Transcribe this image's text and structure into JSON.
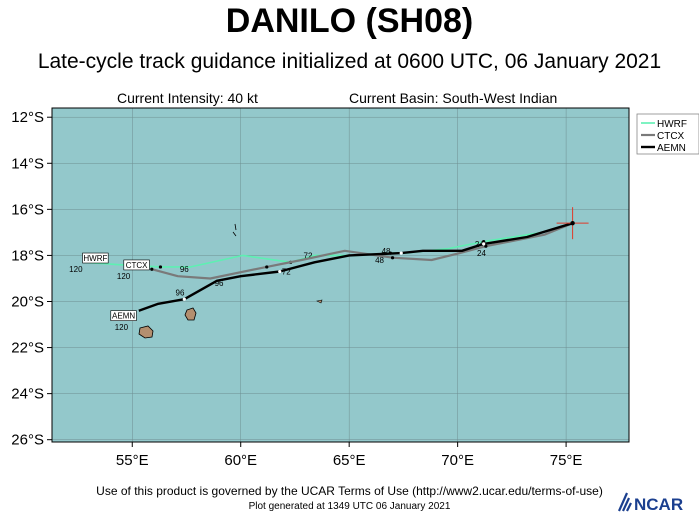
{
  "title": "DANILO (SH08)",
  "subtitle": "Late-cycle track guidance initialized at 0600 UTC, 06 January 2021",
  "current_intensity": "Current Intensity: 40 kt",
  "current_basin": "Current Basin: South-West Indian",
  "footer_terms": "Use of this product is governed by the UCAR Terms of Use (http://www2.ucar.edu/terms-of-use)",
  "footer_generated": "Plot generated at 1349 UTC   06 January 2021",
  "logo_text": "NCAR",
  "colors": {
    "ocean": "#93c8cb",
    "land": "#b48f6f",
    "HWRF": "#5ef0b2",
    "CTCX": "#7a7a7a",
    "AEMN": "#000000",
    "current_position": "#e03a2a"
  },
  "chart_data": {
    "type": "line",
    "xlabel": "",
    "ylabel": "",
    "xlim": [
      51.3,
      77.9
    ],
    "ylim": [
      -26.1,
      -11.6
    ],
    "x_ticks": [
      "55°E",
      "60°E",
      "65°E",
      "70°E",
      "75°E"
    ],
    "y_ticks": [
      "12°S",
      "14°S",
      "16°S",
      "18°S",
      "20°S",
      "22°S",
      "24°S",
      "26°S"
    ],
    "legend": [
      "HWRF",
      "CTCX",
      "AEMN"
    ],
    "legend_position": "right",
    "current_position": {
      "lon": 75.3,
      "lat": -16.6
    },
    "series": [
      {
        "name": "HWRF",
        "lon": [
          75.3,
          73.9,
          71.2,
          69.6,
          67.6,
          66.9,
          65.3,
          63.4,
          62.3,
          60.1,
          57.7,
          56.3,
          54.3,
          52.8
        ],
        "lat": [
          -16.6,
          -17.0,
          -17.4,
          -17.7,
          -17.9,
          -17.9,
          -18.0,
          -18.0,
          -18.3,
          -18.0,
          -18.5,
          -18.5,
          -18.4,
          -18.3
        ],
        "tau_labels": [
          {
            "text": "24",
            "lon": 71.0,
            "lat": -17.5
          },
          {
            "text": "48",
            "lon": 66.7,
            "lat": -17.8
          },
          {
            "text": "72",
            "lon": 63.1,
            "lat": -18.0
          },
          {
            "text": "96",
            "lon": 57.4,
            "lat": -18.6
          },
          {
            "text": "120",
            "lon": 52.4,
            "lat": -18.6
          }
        ],
        "end_label": {
          "text": "HWRF",
          "lon": 53.3,
          "lat": -18.2
        }
      },
      {
        "name": "CTCX",
        "lon": [
          75.3,
          74.0,
          71.3,
          70.1,
          68.8,
          67.0,
          64.8,
          62.8,
          61.2,
          58.6,
          57.1,
          55.9
        ],
        "lat": [
          -16.6,
          -17.1,
          -17.6,
          -17.9,
          -18.2,
          -18.1,
          -17.8,
          -18.2,
          -18.5,
          -19.0,
          -18.9,
          -18.6
        ],
        "tau_labels": [
          {
            "text": "24",
            "lon": 71.1,
            "lat": -17.9
          },
          {
            "text": "48",
            "lon": 66.4,
            "lat": -18.2
          },
          {
            "text": "72",
            "lon": 62.1,
            "lat": -18.7
          },
          {
            "text": "120",
            "lon": 54.6,
            "lat": -18.9
          }
        ],
        "end_label": {
          "text": "CTCX",
          "lon": 55.2,
          "lat": -18.5
        }
      },
      {
        "name": "AEMN",
        "lon": [
          75.3,
          73.2,
          71.2,
          70.2,
          68.4,
          67.4,
          65.0,
          63.4,
          61.8,
          60.0,
          58.9,
          57.4,
          56.2,
          55.3
        ],
        "lat": [
          -16.6,
          -17.2,
          -17.5,
          -17.8,
          -17.8,
          -17.9,
          -18.0,
          -18.3,
          -18.7,
          -18.9,
          -19.1,
          -19.9,
          -20.1,
          -20.4
        ],
        "tau_labels": [
          {
            "text": "96",
            "lon": 59.0,
            "lat": -19.2
          },
          {
            "text": "96",
            "lon": 57.2,
            "lat": -19.6
          },
          {
            "text": "120",
            "lon": 54.5,
            "lat": -21.1
          }
        ],
        "end_label": {
          "text": "AEMN",
          "lon": 54.6,
          "lat": -20.7
        }
      }
    ]
  }
}
